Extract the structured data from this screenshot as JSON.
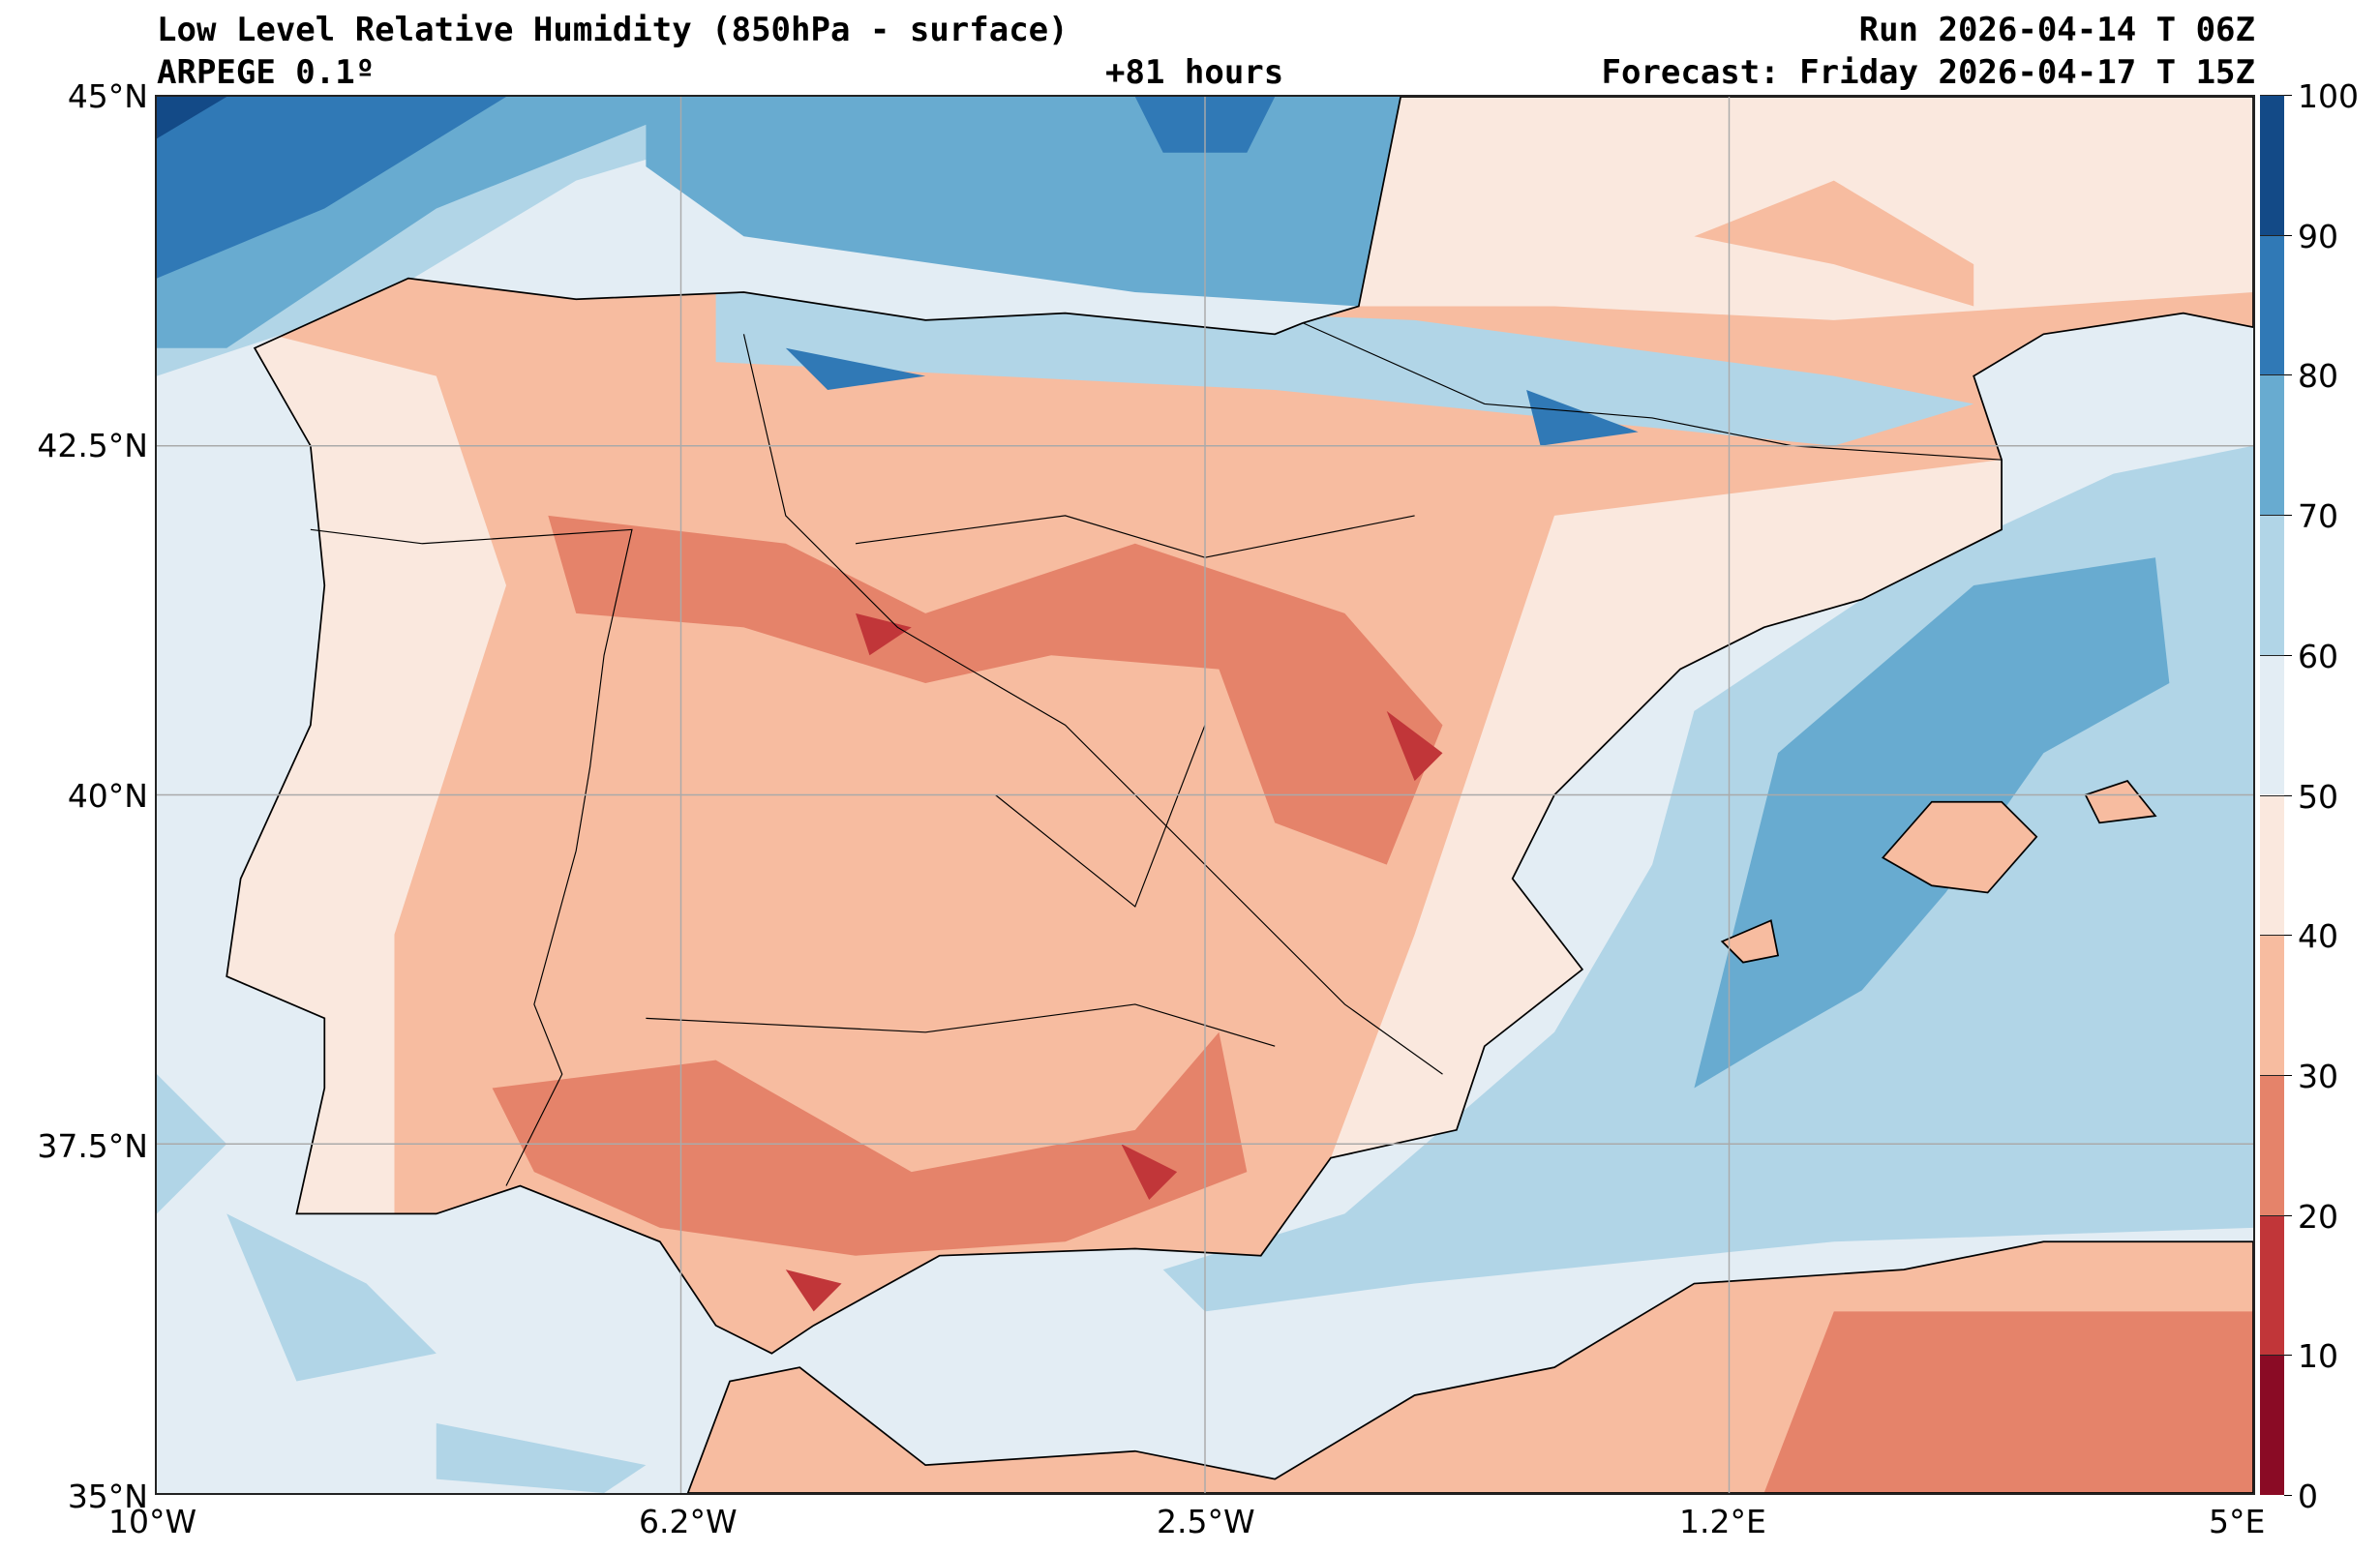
{
  "header": {
    "title": "Low Level Relative Humidity (850hPa - surface)",
    "model": "ARPEGE 0.1º",
    "lead_time": "+81 hours",
    "run": "Run 2026-04-14 T 06Z",
    "forecast": "Forecast: Friday 2026-04-17 T 15Z"
  },
  "axes": {
    "lat_labels": [
      "45°N",
      "42.5°N",
      "40°N",
      "37.5°N",
      "35°N"
    ],
    "lon_labels": [
      "10°W",
      "6.2°W",
      "2.5°W",
      "1.2°E",
      "5°E"
    ]
  },
  "colorbar": {
    "ticks": [
      "0",
      "10",
      "20",
      "30",
      "40",
      "50",
      "60",
      "70",
      "80",
      "90",
      "100"
    ],
    "colors": [
      "#8a0b25",
      "#c13639",
      "#e5836a",
      "#f7bca0",
      "#fae8de",
      "#e3edf4",
      "#b1d5e7",
      "#68abd0",
      "#3079b6",
      "#134a87"
    ]
  }
}
